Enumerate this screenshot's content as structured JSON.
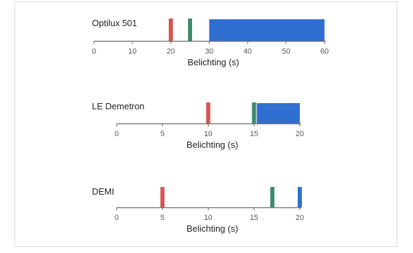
{
  "chart_data": [
    {
      "type": "bar",
      "title": "Optilux 501",
      "xlabel": "Belichting (s)",
      "xlim": [
        0,
        60
      ],
      "xticks": [
        0,
        10,
        20,
        30,
        40,
        50,
        60
      ],
      "marks": [
        {
          "kind": "line",
          "x": 20,
          "color": "#d9534f"
        },
        {
          "kind": "line",
          "x": 25,
          "color": "#3d8b6d"
        },
        {
          "kind": "range",
          "x": [
            30,
            60
          ],
          "color": "#2f6fd0"
        }
      ]
    },
    {
      "type": "bar",
      "title": "LE Demetron",
      "xlabel": "Belichting (s)",
      "xlim": [
        0,
        20
      ],
      "xticks": [
        0,
        5,
        10,
        15,
        20
      ],
      "marks": [
        {
          "kind": "line",
          "x": 10,
          "color": "#d9534f"
        },
        {
          "kind": "line",
          "x": 15,
          "color": "#3d8b6d"
        },
        {
          "kind": "range",
          "x": [
            15.3,
            20
          ],
          "color": "#2f6fd0"
        }
      ]
    },
    {
      "type": "bar",
      "title": "DEMI",
      "xlabel": "Belichting (s)",
      "xlim": [
        0,
        20
      ],
      "xticks": [
        0,
        5,
        10,
        15,
        20
      ],
      "marks": [
        {
          "kind": "line",
          "x": 5,
          "color": "#d9534f"
        },
        {
          "kind": "line",
          "x": 17,
          "color": "#3d8b6d"
        },
        {
          "kind": "line",
          "x": 20,
          "color": "#2f6fd0"
        }
      ]
    }
  ],
  "colors": {
    "frame": "#d8d8d8",
    "axis": "#666666",
    "text": "#222222",
    "tick_text": "#555555"
  }
}
